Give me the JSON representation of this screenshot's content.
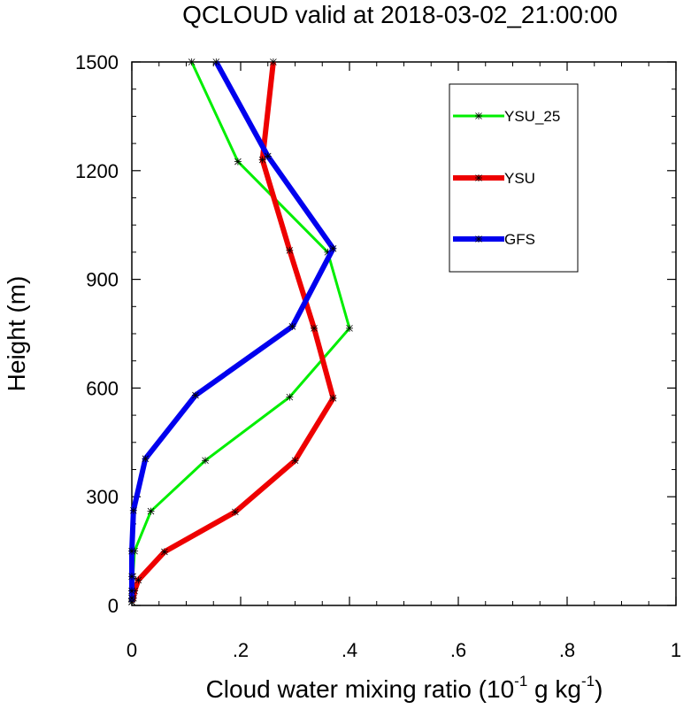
{
  "chart_data": {
    "type": "line",
    "title": "QCLOUD valid at 2018-03-02_21:00:00",
    "xlabel_main": "Cloud water mixing ratio (10",
    "xlabel_sup1": "-1",
    "xlabel_mid": " g kg",
    "xlabel_sup2": "-1",
    "xlabel_end": ")",
    "ylabel": "Height (m)",
    "xlim": [
      0,
      1
    ],
    "ylim": [
      0,
      1500
    ],
    "xticks": [
      0,
      0.2,
      0.4,
      0.6,
      0.8,
      1.0
    ],
    "xtick_labels": [
      "0",
      ".2",
      ".4",
      ".6",
      ".8",
      "1"
    ],
    "yticks": [
      0,
      300,
      600,
      900,
      1200,
      1500
    ],
    "ytick_labels": [
      "0",
      "300",
      "600",
      "900",
      "1200",
      "1500"
    ],
    "legend_position": "top-right",
    "series": [
      {
        "name": "YSU_25",
        "color": "#00ee00",
        "stroke": 3,
        "points": [
          [
            0.0,
            10
          ],
          [
            0.0,
            20
          ],
          [
            0.0,
            40
          ],
          [
            0.002,
            80
          ],
          [
            0.005,
            150
          ],
          [
            0.035,
            260
          ],
          [
            0.135,
            400
          ],
          [
            0.29,
            575
          ],
          [
            0.4,
            765
          ],
          [
            0.36,
            975
          ],
          [
            0.195,
            1225
          ],
          [
            0.11,
            1500
          ]
        ]
      },
      {
        "name": "YSU",
        "color": "#ee0000",
        "stroke": 6,
        "points": [
          [
            0.0,
            10
          ],
          [
            0.003,
            20
          ],
          [
            0.005,
            40
          ],
          [
            0.012,
            70
          ],
          [
            0.06,
            148
          ],
          [
            0.19,
            258
          ],
          [
            0.3,
            400
          ],
          [
            0.37,
            572
          ],
          [
            0.335,
            765
          ],
          [
            0.29,
            980
          ],
          [
            0.24,
            1230
          ],
          [
            0.26,
            1500
          ]
        ]
      },
      {
        "name": "GFS",
        "color": "#0000ee",
        "stroke": 6,
        "points": [
          [
            0.0,
            10
          ],
          [
            0.0,
            20
          ],
          [
            0.0,
            40
          ],
          [
            0.0,
            80
          ],
          [
            0.0,
            150
          ],
          [
            0.003,
            262
          ],
          [
            0.025,
            405
          ],
          [
            0.117,
            580
          ],
          [
            0.295,
            770
          ],
          [
            0.37,
            985
          ],
          [
            0.25,
            1240
          ],
          [
            0.155,
            1500
          ]
        ]
      }
    ]
  }
}
